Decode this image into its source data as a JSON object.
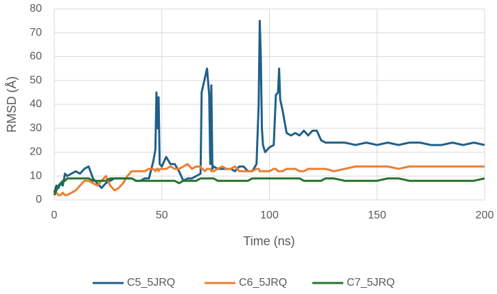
{
  "chart_data": {
    "type": "line",
    "xlabel": "Time (ns)",
    "ylabel": "RMSD (Å)",
    "x": [
      0,
      1,
      2,
      3,
      4,
      5,
      6,
      8,
      10,
      12,
      14,
      16,
      18,
      20,
      22,
      24,
      26,
      28,
      30,
      32,
      34,
      36,
      38,
      40,
      42,
      44,
      46,
      47,
      47.5,
      48,
      48.5,
      49,
      50,
      52,
      54,
      56,
      58,
      60,
      62,
      64,
      66,
      68,
      68.5,
      69,
      70,
      71,
      72,
      72.5,
      73,
      73.5,
      74,
      76,
      78,
      80,
      82,
      84,
      86,
      88,
      90,
      92,
      94,
      95,
      95.5,
      96,
      96.5,
      97,
      98,
      100,
      102,
      103,
      104,
      104.5,
      105,
      106,
      108,
      110,
      112,
      114,
      116,
      118,
      120,
      122,
      124,
      126,
      130,
      135,
      140,
      145,
      150,
      155,
      160,
      165,
      170,
      175,
      180,
      185,
      190,
      195,
      200
    ],
    "series": [
      {
        "name": "C5_5JRQ",
        "color": "#1f5f8b",
        "values": [
          3,
          6,
          5,
          7,
          6,
          11,
          10,
          11,
          12,
          11,
          13,
          14,
          9,
          7,
          5,
          7,
          8,
          9,
          9,
          9,
          9,
          9,
          8,
          8,
          9,
          9,
          16,
          21,
          45,
          30,
          43,
          15,
          14,
          18,
          15,
          15,
          12,
          8,
          9,
          9,
          10,
          11,
          45,
          47,
          51,
          55,
          44,
          15,
          48,
          13,
          14,
          13,
          13,
          13,
          13,
          12,
          14,
          14,
          12,
          12,
          15,
          40,
          75,
          60,
          30,
          23,
          20,
          22,
          23,
          44,
          45,
          55,
          42,
          38,
          28,
          27,
          28,
          27,
          29,
          27,
          29,
          29,
          25,
          24,
          24,
          24,
          23,
          24,
          23,
          24,
          23,
          24,
          24,
          23,
          23,
          24,
          23,
          24,
          23
        ]
      },
      {
        "name": "C6_5JRQ",
        "color": "#ed7d31",
        "values": [
          2,
          3,
          2,
          2,
          3,
          2,
          2,
          3,
          4,
          6,
          8,
          8,
          7,
          6,
          8,
          10,
          6,
          4,
          5,
          7,
          10,
          12,
          12,
          12,
          12,
          13,
          13,
          12,
          13,
          13,
          12,
          13,
          13,
          13,
          14,
          13,
          13,
          14,
          15,
          13,
          14,
          14,
          13,
          13,
          12,
          13,
          13,
          13,
          12,
          12,
          12,
          13,
          14,
          13,
          13,
          14,
          12,
          12,
          12,
          12,
          13,
          13,
          12,
          12,
          12,
          12,
          12,
          12,
          13,
          13,
          12,
          12,
          12,
          12,
          13,
          13,
          13,
          12,
          12,
          13,
          13,
          13,
          13,
          13,
          12,
          13,
          14,
          14,
          14,
          14,
          13,
          14,
          14,
          14,
          14,
          14,
          14,
          14,
          14
        ]
      },
      {
        "name": "C7_5JRQ",
        "color": "#26742b",
        "values": [
          2,
          4,
          6,
          7,
          8,
          8,
          9,
          9,
          9,
          9,
          9,
          9,
          8,
          8,
          8,
          8,
          9,
          9,
          9,
          9,
          9,
          9,
          8,
          8,
          8,
          8,
          8,
          8,
          8,
          8,
          8,
          8,
          8,
          8,
          8,
          8,
          7,
          8,
          8,
          8,
          8,
          9,
          9,
          9,
          9,
          9,
          9,
          9,
          9,
          9,
          9,
          8,
          8,
          8,
          8,
          8,
          8,
          8,
          8,
          9,
          9,
          9,
          9,
          9,
          9,
          9,
          9,
          9,
          9,
          9,
          9,
          9,
          9,
          9,
          9,
          9,
          9,
          9,
          8,
          8,
          8,
          8,
          8,
          9,
          9,
          8,
          8,
          8,
          8,
          9,
          9,
          8,
          8,
          8,
          8,
          8,
          8,
          8,
          9
        ]
      }
    ],
    "xlim": [
      0,
      200
    ],
    "xticks": [
      0,
      50,
      100,
      150,
      200
    ],
    "ylim": [
      0,
      80
    ],
    "yticks": [
      0,
      10,
      20,
      30,
      40,
      50,
      60,
      70,
      80
    ],
    "grid": true,
    "legend": "bottom"
  }
}
